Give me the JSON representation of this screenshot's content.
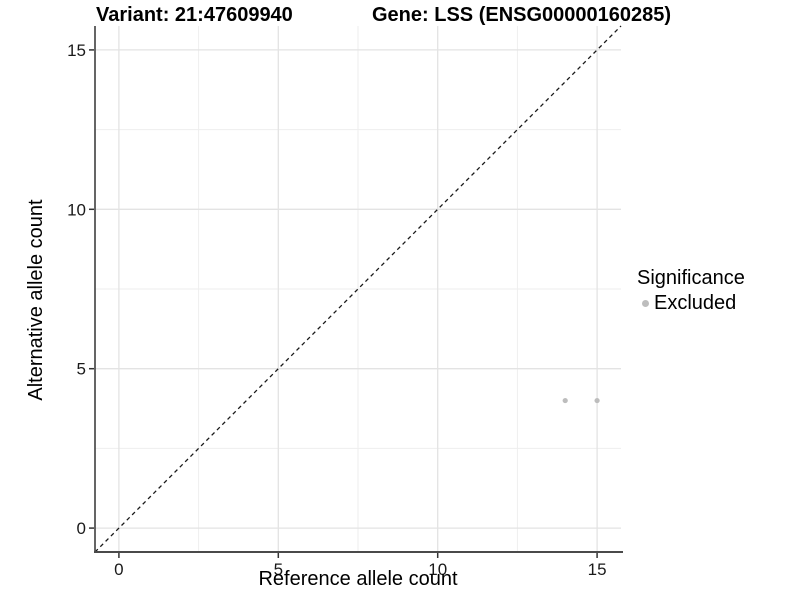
{
  "titles": {
    "variant": "Variant: 21:47609940",
    "gene": "Gene: LSS (ENSG00000160285)"
  },
  "chart_data": {
    "type": "scatter",
    "xlabel": "Reference allele count",
    "ylabel": "Alternative allele count",
    "xlim": [
      -0.75,
      15.75
    ],
    "ylim": [
      -0.75,
      15.75
    ],
    "x_major_ticks": [
      0,
      5,
      10,
      15
    ],
    "y_major_ticks": [
      0,
      5,
      10,
      15
    ],
    "x_minor_ticks": [
      2.5,
      7.5,
      12.5
    ],
    "y_minor_ticks": [
      2.5,
      7.5,
      12.5
    ],
    "grid": true,
    "legend_position": "right",
    "identity_line": {
      "slope": 1,
      "intercept": 0,
      "style": "dashed",
      "color": "#1a1a1a"
    },
    "series": [
      {
        "name": "Excluded",
        "color": "#bdbdbd",
        "points": [
          [
            14,
            4
          ],
          [
            15,
            4
          ]
        ]
      }
    ],
    "legend": {
      "title": "Significance",
      "entries": [
        {
          "label": "Excluded",
          "color": "#bdbdbd"
        }
      ]
    },
    "theme": {
      "background": "#ffffff",
      "grid_major": "#e3e3e3",
      "grid_minor": "#eeeeee",
      "axis_line": "#4a4a4a",
      "tick_mark": "#333333",
      "tick_label": "#1a1a1a",
      "point_radius": 2.6
    }
  }
}
